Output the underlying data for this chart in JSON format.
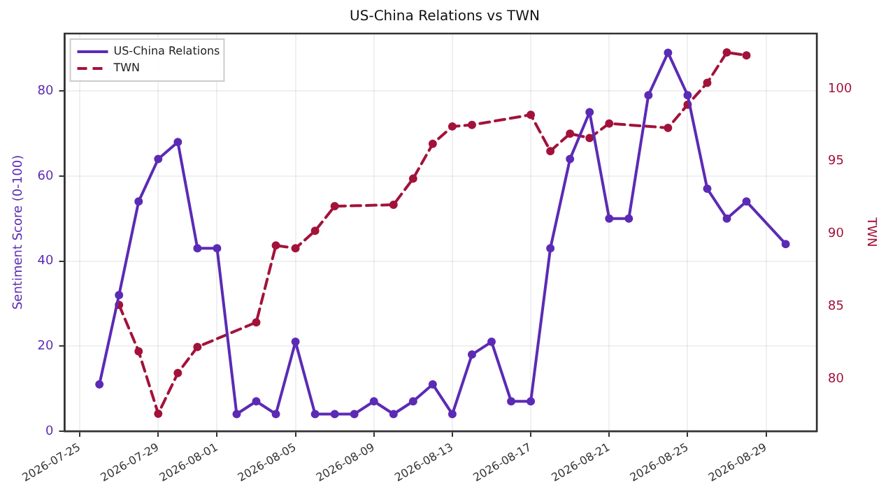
{
  "chart_data": {
    "type": "line",
    "title": "US-China Relations vs TWN",
    "ylabel": "Sentiment Score (0-100)",
    "y2label": "TWN",
    "xlim": [
      "2026-07-24T05:30",
      "2026-08-31T14:00"
    ],
    "xticks": [
      "2026-07-25",
      "2026-07-29",
      "2026-08-01",
      "2026-08-05",
      "2026-08-09",
      "2026-08-13",
      "2026-08-17",
      "2026-08-21",
      "2026-08-25",
      "2026-08-29"
    ],
    "ylim": [
      0,
      93.5
    ],
    "yticks": [
      0,
      20,
      40,
      60,
      80
    ],
    "y2lim": [
      76.4,
      103.8
    ],
    "y2ticks": [
      80,
      85,
      90,
      95,
      100
    ],
    "grid": true,
    "legend": "top left",
    "marker": "circle",
    "series": [
      {
        "name": "US-China Relations",
        "color": "#5b2bb5",
        "line_style": "solid",
        "x": [
          "2026-07-26",
          "2026-07-27",
          "2026-07-28",
          "2026-07-29",
          "2026-07-30",
          "2026-07-31",
          "2026-08-01",
          "2026-08-02",
          "2026-08-03",
          "2026-08-04",
          "2026-08-05",
          "2026-08-06",
          "2026-08-07",
          "2026-08-08",
          "2026-08-09",
          "2026-08-10",
          "2026-08-11",
          "2026-08-12",
          "2026-08-13",
          "2026-08-14",
          "2026-08-15",
          "2026-08-16",
          "2026-08-17",
          "2026-08-18",
          "2026-08-19",
          "2026-08-20",
          "2026-08-21",
          "2026-08-22",
          "2026-08-23",
          "2026-08-24",
          "2026-08-25",
          "2026-08-26",
          "2026-08-27",
          "2026-08-28",
          "2026-08-30"
        ],
        "values": [
          11,
          32,
          54,
          64,
          68,
          43,
          43,
          4,
          7,
          4,
          21,
          4,
          4,
          4,
          7,
          4,
          7,
          11,
          4,
          18,
          21,
          7,
          7,
          43,
          64,
          75,
          50,
          50,
          79,
          89,
          79,
          57,
          50,
          54,
          44
        ]
      },
      {
        "name": "TWN",
        "color": "#a3123a",
        "line_style": "dashed",
        "axis": "y2",
        "x": [
          "2026-07-27",
          "2026-07-28",
          "2026-07-29",
          "2026-07-30",
          "2026-07-31",
          "2026-08-03",
          "2026-08-04",
          "2026-08-05",
          "2026-08-06",
          "2026-08-07",
          "2026-08-10",
          "2026-08-11",
          "2026-08-12",
          "2026-08-13",
          "2026-08-14",
          "2026-08-17",
          "2026-08-18",
          "2026-08-19",
          "2026-08-20",
          "2026-08-21",
          "2026-08-24",
          "2026-08-25",
          "2026-08-26",
          "2026-08-27",
          "2026-08-28"
        ],
        "values": [
          85.1,
          81.9,
          77.6,
          80.4,
          82.2,
          83.9,
          89.2,
          89.0,
          90.2,
          91.9,
          92.0,
          93.8,
          96.2,
          97.4,
          97.5,
          98.2,
          95.7,
          96.9,
          96.6,
          97.6,
          97.3,
          98.9,
          100.4,
          102.5,
          102.3
        ]
      }
    ]
  }
}
